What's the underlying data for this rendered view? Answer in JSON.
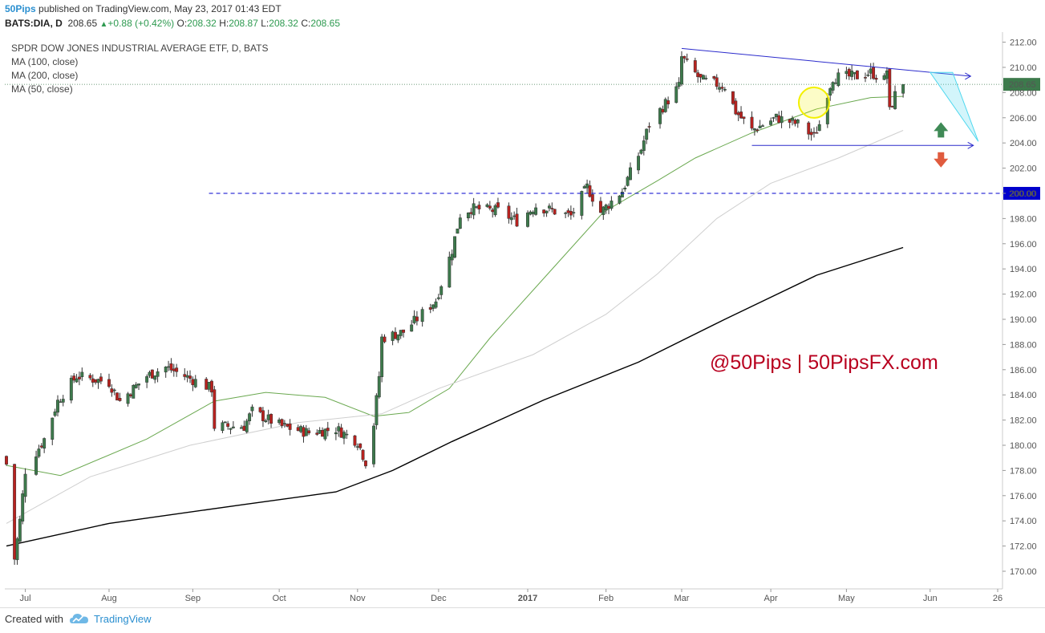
{
  "header": {
    "publisher": "50Pips",
    "published_text": "published on TradingView.com, May 23, 2017 01:43 EDT",
    "symbol": "BATS:DIA, D",
    "last": "208.65",
    "change": "+0.88 (+0.42%)",
    "o_label": "O:",
    "o_value": "208.32",
    "h_label": "H:",
    "h_value": "208.87",
    "l_label": "L:",
    "l_value": "208.32",
    "c_label": "C:",
    "c_value": "208.65"
  },
  "legend": {
    "title": "SPDR DOW JONES INDUSTRIAL AVERAGE ETF, D, BATS",
    "studies": [
      "MA (100, close)",
      "MA (200, close)",
      "MA (50, close)"
    ]
  },
  "watermark": "@50Pips | 50PipsFX.com",
  "footer": {
    "created_with": "Created with",
    "brand": "TradingView"
  },
  "colors": {
    "up": "#3d7a4c",
    "down": "#b8221f",
    "ma50": "#6aa84f",
    "ma100": "#cfcfcf",
    "ma200": "#000000",
    "trendline": "#2b2bcc",
    "resistance": "#0000cc",
    "projection": "#4fd8ef",
    "highlight": "#f3f000",
    "arrow_up": "#3f8a56",
    "arrow_down": "#e05b3e",
    "axis_text": "#555555"
  },
  "chart_data": {
    "type": "candlestick",
    "title": "SPDR DOW JONES INDUSTRIAL AVERAGE ETF, D, BATS",
    "y_axis": {
      "min": 168.6,
      "max": 212.8,
      "ticks": [
        170,
        172,
        174,
        176,
        178,
        180,
        182,
        184,
        186,
        188,
        190,
        192,
        194,
        196,
        198,
        200,
        202,
        204,
        206,
        208,
        210,
        212
      ],
      "position": "right"
    },
    "x_axis": {
      "start": "2016-06-24",
      "end": "2017-06-26",
      "ticks": [
        {
          "date": "2016-07-01",
          "label": "Jul"
        },
        {
          "date": "2016-08-01",
          "label": "Aug"
        },
        {
          "date": "2016-09-01",
          "label": "Sep"
        },
        {
          "date": "2016-10-03",
          "label": "Oct"
        },
        {
          "date": "2016-11-01",
          "label": "Nov"
        },
        {
          "date": "2016-12-01",
          "label": "Dec"
        },
        {
          "date": "2017-01-03",
          "label": "2017",
          "bold": true
        },
        {
          "date": "2017-02-01",
          "label": "Feb"
        },
        {
          "date": "2017-03-01",
          "label": "Mar"
        },
        {
          "date": "2017-04-03",
          "label": "Apr"
        },
        {
          "date": "2017-05-01",
          "label": "May"
        },
        {
          "date": "2017-06-01",
          "label": "Jun"
        },
        {
          "date": "2017-06-26",
          "label": "26"
        }
      ]
    },
    "price_pivots": [
      [
        "2016-06-24",
        178.5
      ],
      [
        "2016-06-27",
        171.0
      ],
      [
        "2016-06-29",
        174.0
      ],
      [
        "2016-07-01",
        178.0
      ],
      [
        "2016-07-08",
        180.5
      ],
      [
        "2016-07-13",
        183.5
      ],
      [
        "2016-07-20",
        185.5
      ],
      [
        "2016-08-01",
        185.0
      ],
      [
        "2016-08-05",
        183.5
      ],
      [
        "2016-08-15",
        185.5
      ],
      [
        "2016-08-22",
        186.2
      ],
      [
        "2016-09-08",
        184.5
      ],
      [
        "2016-09-09",
        181.5
      ],
      [
        "2016-09-20",
        181.5
      ],
      [
        "2016-09-23",
        182.7
      ],
      [
        "2016-10-04",
        181.5
      ],
      [
        "2016-10-14",
        181.0
      ],
      [
        "2016-10-24",
        181.3
      ],
      [
        "2016-11-01",
        180.3
      ],
      [
        "2016-11-04",
        178.7
      ],
      [
        "2016-11-07",
        181.7
      ],
      [
        "2016-11-09",
        185.5
      ],
      [
        "2016-11-10",
        188.5
      ],
      [
        "2016-11-18",
        189.0
      ],
      [
        "2016-11-30",
        191.5
      ],
      [
        "2016-12-06",
        195.5
      ],
      [
        "2016-12-09",
        198.3
      ],
      [
        "2016-12-13",
        198.8
      ],
      [
        "2016-12-23",
        198.6
      ],
      [
        "2016-12-30",
        197.8
      ],
      [
        "2017-01-06",
        199.0
      ],
      [
        "2017-01-19",
        198.2
      ],
      [
        "2017-01-25",
        200.5
      ],
      [
        "2017-01-30",
        198.5
      ],
      [
        "2017-02-07",
        200.2
      ],
      [
        "2017-02-14",
        203.5
      ],
      [
        "2017-02-17",
        205.5
      ],
      [
        "2017-02-28",
        208.5
      ],
      [
        "2017-03-01",
        210.8
      ],
      [
        "2017-03-08",
        209.0
      ],
      [
        "2017-03-17",
        208.5
      ],
      [
        "2017-03-21",
        206.5
      ],
      [
        "2017-03-27",
        205.0
      ],
      [
        "2017-04-05",
        206.0
      ],
      [
        "2017-04-13",
        205.5
      ],
      [
        "2017-04-19",
        204.5
      ],
      [
        "2017-04-21",
        205.5
      ],
      [
        "2017-04-24",
        208.0
      ],
      [
        "2017-04-26",
        209.2
      ],
      [
        "2017-05-05",
        209.3
      ],
      [
        "2017-05-10",
        209.6
      ],
      [
        "2017-05-15",
        209.0
      ],
      [
        "2017-05-16",
        209.8
      ],
      [
        "2017-05-17",
        206.5
      ],
      [
        "2017-05-19",
        207.8
      ],
      [
        "2017-05-22",
        208.65
      ]
    ],
    "series": [
      {
        "name": "MA (50, close)",
        "points": [
          [
            "2016-06-24",
            178.4
          ],
          [
            "2016-07-14",
            177.6
          ],
          [
            "2016-08-15",
            180.5
          ],
          [
            "2016-09-09",
            183.5
          ],
          [
            "2016-09-28",
            184.2
          ],
          [
            "2016-10-20",
            183.8
          ],
          [
            "2016-11-07",
            182.3
          ],
          [
            "2016-11-20",
            182.6
          ],
          [
            "2016-12-05",
            184.5
          ],
          [
            "2016-12-20",
            188.5
          ],
          [
            "2017-01-10",
            193.5
          ],
          [
            "2017-01-31",
            198.5
          ],
          [
            "2017-02-20",
            201.0
          ],
          [
            "2017-03-06",
            202.8
          ],
          [
            "2017-03-27",
            204.8
          ],
          [
            "2017-04-20",
            206.7
          ],
          [
            "2017-05-10",
            207.6
          ],
          [
            "2017-05-22",
            207.7
          ]
        ]
      },
      {
        "name": "MA (100, close)",
        "points": [
          [
            "2016-06-24",
            173.8
          ],
          [
            "2016-07-25",
            177.5
          ],
          [
            "2016-08-31",
            180.0
          ],
          [
            "2016-10-10",
            181.8
          ],
          [
            "2016-11-10",
            182.5
          ],
          [
            "2016-12-01",
            184.5
          ],
          [
            "2017-01-05",
            187.2
          ],
          [
            "2017-02-01",
            190.4
          ],
          [
            "2017-02-20",
            193.6
          ],
          [
            "2017-03-14",
            198.0
          ],
          [
            "2017-04-03",
            200.8
          ],
          [
            "2017-04-28",
            202.8
          ],
          [
            "2017-05-22",
            205.0
          ]
        ]
      },
      {
        "name": "MA (200, close)",
        "points": [
          [
            "2016-06-24",
            172.0
          ],
          [
            "2016-08-01",
            173.8
          ],
          [
            "2016-09-20",
            175.3
          ],
          [
            "2016-10-24",
            176.3
          ],
          [
            "2016-11-14",
            178.0
          ],
          [
            "2016-12-06",
            180.3
          ],
          [
            "2017-01-09",
            183.6
          ],
          [
            "2017-02-13",
            186.6
          ],
          [
            "2017-03-17",
            190.0
          ],
          [
            "2017-04-20",
            193.5
          ],
          [
            "2017-05-22",
            195.7
          ]
        ]
      }
    ],
    "annotations": {
      "resistance_line": {
        "price": 200.0,
        "label": "200.00",
        "from": "2016-09-07"
      },
      "last_price_label": "208.65",
      "trendline": {
        "from": [
          "2017-03-01",
          211.5
        ],
        "to": [
          "2017-06-16",
          209.3
        ]
      },
      "support_line": {
        "price": 203.8,
        "from": [
          "2017-03-27",
          203.8
        ],
        "to": [
          "2017-06-17",
          203.8
        ]
      },
      "projection_from": [
        "2017-06-01",
        209.6
      ],
      "highlight": {
        "date": "2017-04-19",
        "price": 207.2
      },
      "arrow_date": "2017-06-05",
      "arrow_up_price": 205.2,
      "arrow_down_price": 202.5
    }
  }
}
